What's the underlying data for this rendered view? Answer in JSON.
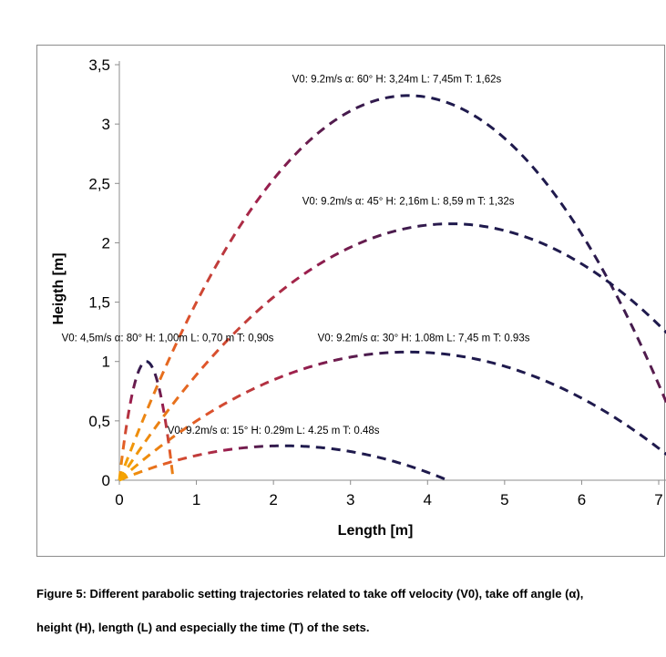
{
  "chart_data": {
    "type": "line",
    "xlabel": "Length [m]",
    "ylabel": "Heigth [m]",
    "xlim": [
      0,
      7
    ],
    "ylim": [
      0,
      3.5
    ],
    "x_ticks": [
      "0",
      "1",
      "2",
      "3",
      "4",
      "5",
      "6",
      "7"
    ],
    "y_ticks": [
      "0",
      "0,5",
      "1",
      "1,5",
      "2",
      "2,5",
      "3",
      "3,5"
    ],
    "grid": false,
    "line_style": "dashed",
    "gradient_colors": [
      "#f5a800",
      "#e0552a",
      "#9b1e4e",
      "#1f1a4d"
    ],
    "series": [
      {
        "label": "V0: 9.2m/s α: 60° H: 3,24m L: 7,45m T: 1,62s",
        "v0": 9.2,
        "angle": 60,
        "apex_x": 3.75,
        "apex_y": 3.24,
        "range": 7.45
      },
      {
        "label": "V0: 9.2m/s α: 45° H: 2,16m L: 8,59 m T: 1,32s",
        "v0": 9.2,
        "angle": 45,
        "apex_x": 4.3,
        "apex_y": 2.16,
        "range": 8.59
      },
      {
        "label": "V0: 9.2m/s α: 30° H: 1.08m L: 7,45 m T: 0.93s",
        "v0": 9.2,
        "angle": 30,
        "apex_x": 3.75,
        "apex_y": 1.08,
        "range": 7.45
      },
      {
        "label": "V0: 9.2m/s α: 15° H: 0.29m L: 4.25 m T: 0.48s",
        "v0": 9.2,
        "angle": 15,
        "apex_x": 2.13,
        "apex_y": 0.29,
        "range": 4.25
      },
      {
        "label": "V0: 4,5m/s α: 80° H: 1,00m L: 0,70 m T: 0,90s",
        "v0": 4.5,
        "angle": 80,
        "apex_x": 0.35,
        "apex_y": 1.0,
        "range": 0.7
      }
    ]
  },
  "caption": {
    "line1": "Figure 5: Different parabolic setting trajectories related to take off velocity (V0), take off angle (α),",
    "line2": "height (H), length (L) and especially the time (T) of the sets."
  }
}
